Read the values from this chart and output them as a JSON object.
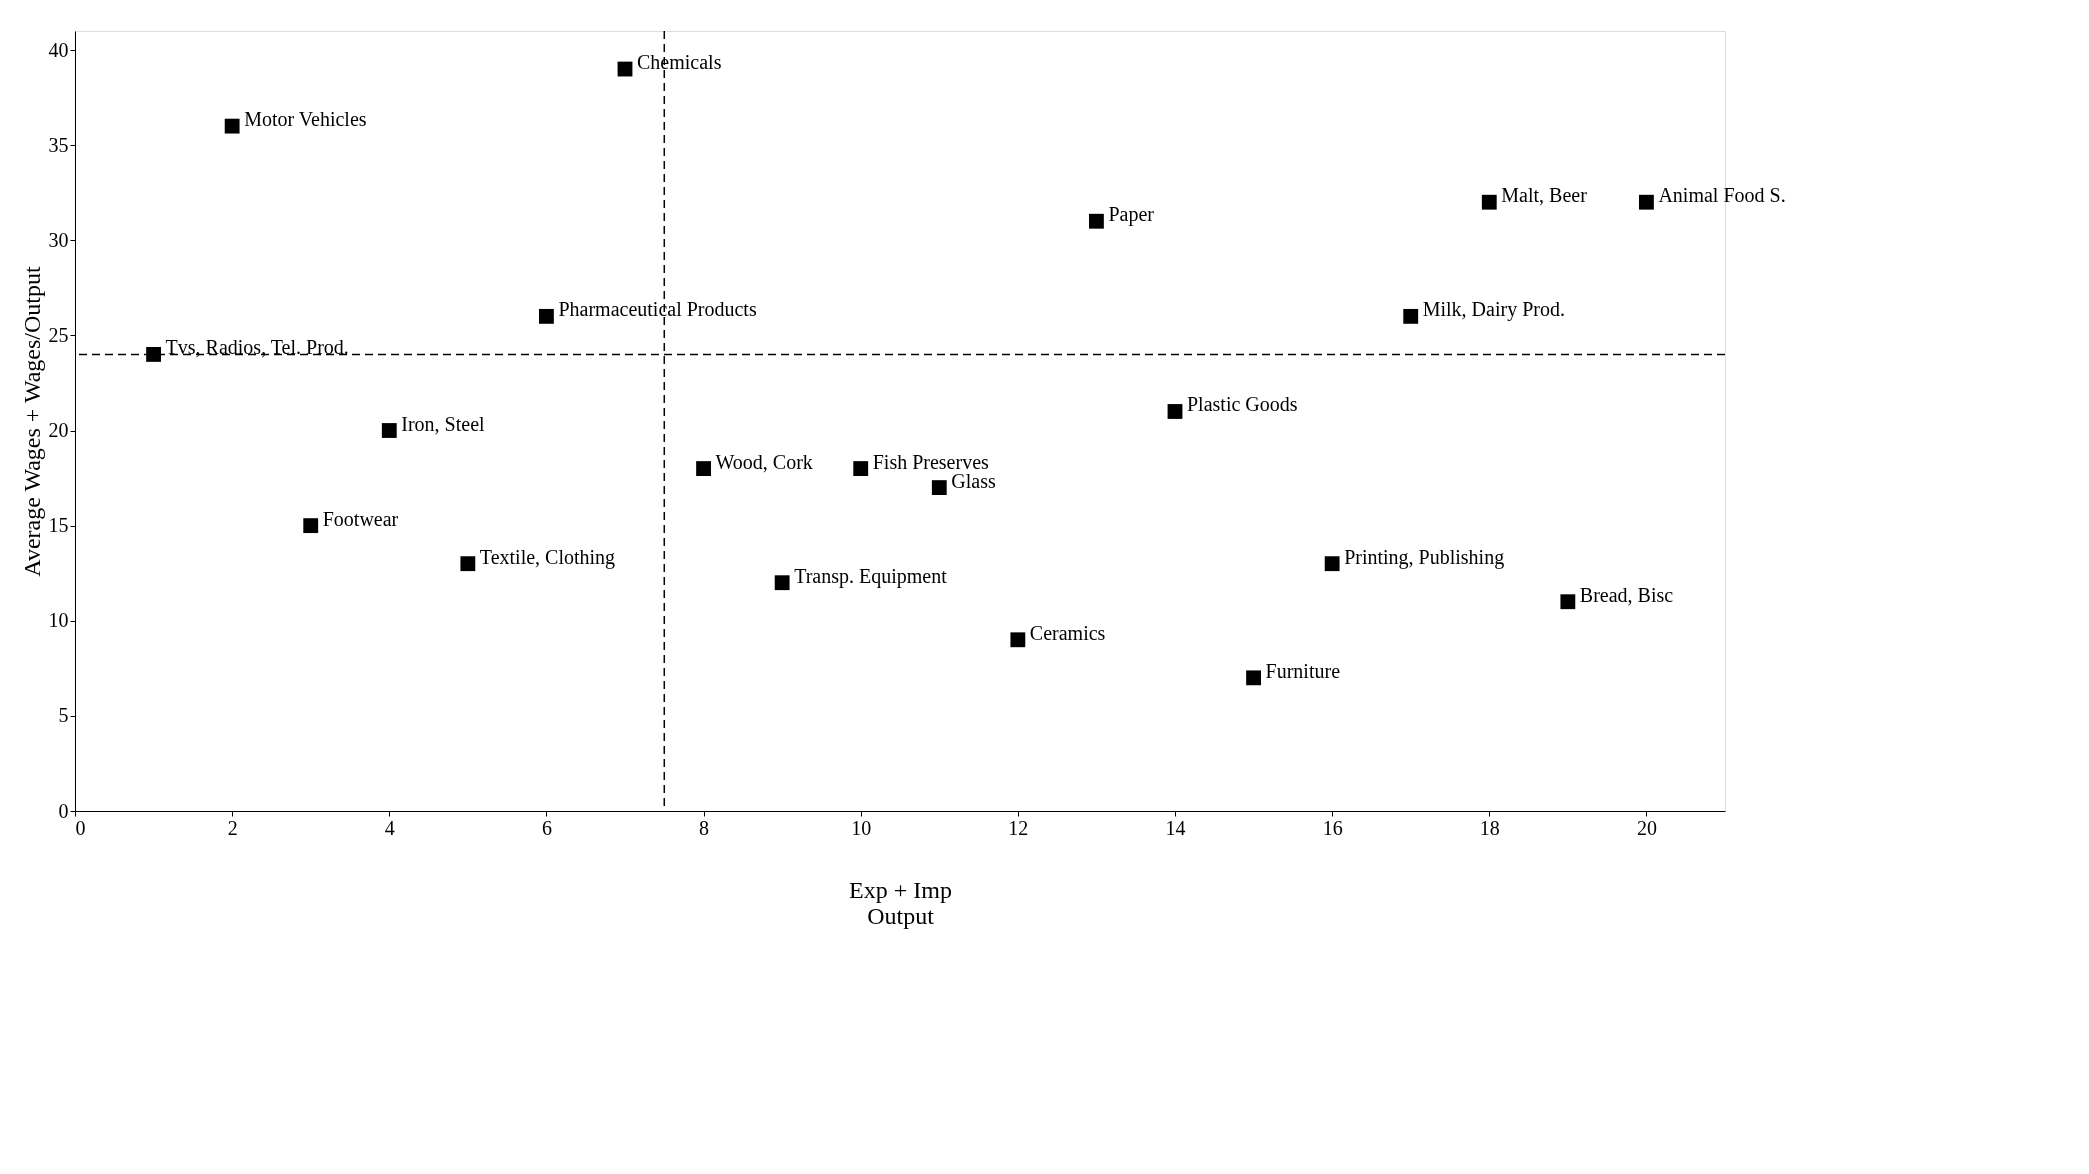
{
  "chart_data": {
    "type": "scatter",
    "xlabel": "Exp + Imp\nOutput",
    "ylabel": "Average Wages + Wages/Output",
    "series": [
      {
        "color": "#000000",
        "x": [
          1,
          2,
          3,
          4,
          5,
          6,
          7,
          8,
          9,
          10,
          11,
          12,
          13,
          14,
          15,
          16,
          17,
          18,
          19,
          20
        ],
        "values": [
          24,
          36,
          15,
          20,
          13,
          26,
          39,
          18,
          12,
          18,
          17,
          9,
          31,
          21,
          7,
          13,
          26,
          32,
          11,
          32
        ]
      }
    ],
    "annotations": [
      {
        "text": "Tvs, Radios, Tel. Prod.",
        "x": 1,
        "y": 24
      },
      {
        "text": "Motor Vehicles",
        "x": 2,
        "y": 36
      },
      {
        "text": "Footwear",
        "x": 3,
        "y": 15
      },
      {
        "text": "Iron, Steel",
        "x": 4,
        "y": 20
      },
      {
        "text": "Textile, Clothing",
        "x": 5,
        "y": 13
      },
      {
        "text": "Pharmaceutical Products",
        "x": 6,
        "y": 26
      },
      {
        "text": "Chemicals",
        "x": 7,
        "y": 39
      },
      {
        "text": "Wood, Cork",
        "x": 8,
        "y": 18
      },
      {
        "text": "Transp. Equipment",
        "x": 9,
        "y": 12
      },
      {
        "text": "Fish Preserves",
        "x": 10,
        "y": 18
      },
      {
        "text": "Glass",
        "x": 11,
        "y": 17
      },
      {
        "text": "Ceramics",
        "x": 12,
        "y": 9
      },
      {
        "text": "Paper",
        "x": 13,
        "y": 31
      },
      {
        "text": "Plastic Goods",
        "x": 14,
        "y": 21
      },
      {
        "text": "Furniture",
        "x": 15,
        "y": 7
      },
      {
        "text": "Printing, Publishing",
        "x": 16,
        "y": 13
      },
      {
        "text": "Milk, Dairy Prod.",
        "x": 17,
        "y": 26
      },
      {
        "text": "Malt, Beer",
        "x": 18,
        "y": 32
      },
      {
        "text": "Bread, Bisc",
        "x": 19,
        "y": 11
      },
      {
        "text": "Animal Food S.",
        "x": 20,
        "y": 32
      }
    ],
    "ref_lines": [
      {
        "axis": "x",
        "value": 7.5,
        "line_style": "dashed"
      },
      {
        "axis": "y",
        "value": 24,
        "line_style": "dashed"
      }
    ],
    "xlim": [
      0,
      21
    ],
    "ylim": [
      0,
      41
    ],
    "xticks": [
      0,
      2,
      4,
      6,
      8,
      10,
      12,
      14,
      16,
      18,
      20
    ],
    "yticks": [
      0,
      5,
      10,
      15,
      20,
      25,
      30,
      35,
      40
    ],
    "grid": false,
    "marker": "square"
  }
}
